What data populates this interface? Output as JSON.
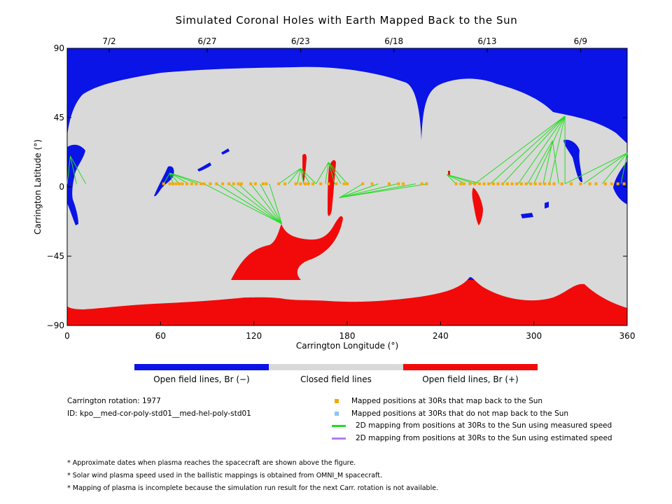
{
  "title": "Simulated Coronal Holes with Earth Mapped Back to the Sun",
  "chart_data": {
    "type": "map",
    "xlabel": "Carrington Longitude (°)",
    "ylabel": "Carrington Latitude (°)",
    "xlim": [
      0,
      360
    ],
    "ylim": [
      -90,
      90
    ],
    "x_ticks": [
      "0",
      "60",
      "120",
      "180",
      "240",
      "300",
      "360"
    ],
    "y_ticks": [
      "90",
      "45",
      "0",
      "−45",
      "−90"
    ],
    "top_ticks": [
      {
        "lon": 27,
        "label": "7/2"
      },
      {
        "lon": 90,
        "label": "6/27"
      },
      {
        "lon": 150,
        "label": "6/23"
      },
      {
        "lon": 210,
        "label": "6/18"
      },
      {
        "lon": 270,
        "label": "6/13"
      },
      {
        "lon": 330,
        "label": "6/9"
      }
    ],
    "colors": {
      "open_neg": "#0a14e6",
      "closed": "#d9d9d9",
      "open_pos": "#f20a0a",
      "mapped": "#f5a800",
      "unmapped": "#8ec6f0",
      "measured": "#22dd22",
      "estimated": "#b57cf0"
    },
    "mapped_points_lat": 2,
    "mapped_points_lon": [
      62,
      66,
      68,
      70,
      72,
      74,
      77,
      80,
      83,
      86,
      88,
      92,
      96,
      100,
      104,
      107,
      110,
      112,
      118,
      121,
      126,
      128,
      136,
      140,
      147,
      150,
      153,
      155,
      158,
      163,
      168,
      173,
      178,
      180,
      190,
      196,
      207,
      213,
      216,
      228,
      231,
      250,
      253,
      255,
      259,
      262,
      265,
      268,
      271,
      274,
      277,
      280,
      283,
      286,
      289,
      292,
      295,
      298,
      301,
      304,
      307,
      310,
      313,
      318,
      324,
      330,
      336,
      340,
      346,
      350,
      354,
      358
    ],
    "field_line_groups": [
      {
        "src": [
          66,
          9
        ],
        "dst_lon": [
          62,
          68,
          72,
          78,
          84,
          88
        ]
      },
      {
        "src": [
          138,
          -24
        ],
        "dst_lon": [
          88,
          96,
          104,
          110,
          118,
          124,
          130
        ]
      },
      {
        "src": [
          150,
          12
        ],
        "dst_lon": [
          136,
          142,
          148,
          152,
          156,
          160
        ]
      },
      {
        "src": [
          168,
          16
        ],
        "dst_lon": [
          160,
          166,
          172,
          176,
          180
        ]
      },
      {
        "src": [
          175,
          -7
        ],
        "dst_lon": [
          190,
          200,
          212,
          224,
          232
        ]
      },
      {
        "src": [
          244,
          8
        ],
        "dst_lon": [
          250,
          256,
          262,
          266
        ]
      },
      {
        "src": [
          320,
          46
        ],
        "dst_lon": [
          262,
          272,
          280,
          290,
          300,
          310,
          320
        ]
      },
      {
        "src": [
          312,
          30
        ],
        "dst_lon": [
          296,
          306,
          316
        ]
      },
      {
        "src": [
          360,
          22
        ],
        "dst_lon": [
          320,
          332,
          344,
          356
        ]
      },
      {
        "src": [
          2,
          20
        ],
        "dst_lon": [
          0,
          6,
          12
        ]
      }
    ]
  },
  "colorbar": {
    "labels": [
      "Open field lines, Br (−)",
      "Closed field lines",
      "Open field lines, Br (+)"
    ]
  },
  "info": {
    "rotation": "Carrington rotation: 1977",
    "id": "ID: kpo__med-cor-poly-std01__med-hel-poly-std01"
  },
  "legend": [
    "Mapped positions at 30Rs that map back to the Sun",
    "Mapped positions at 30Rs that do not map back to the Sun",
    "2D mapping from positions at 30Rs to the Sun using measured speed",
    "2D mapping from positions at 30Rs to the Sun using estimated speed"
  ],
  "notes": [
    "* Approximate dates when plasma reaches the spacecraft are shown above the figure.",
    "* Solar wind plasma speed used in the ballistic mappings is obtained from OMNI_M spacecraft.",
    "* Mapping of plasma is incomplete because the simulation run result for the next Carr. rotation is not available."
  ]
}
